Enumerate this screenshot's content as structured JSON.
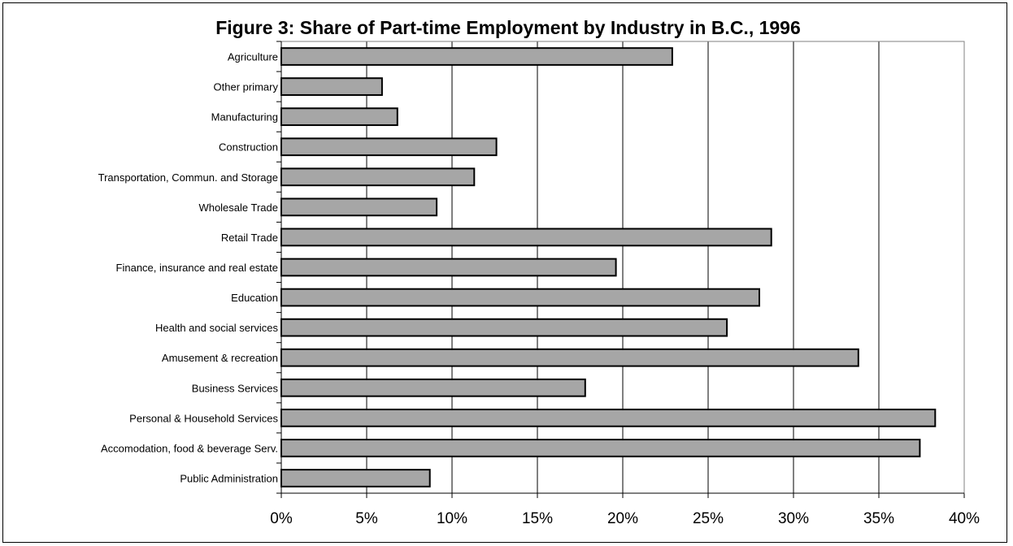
{
  "chart_data": {
    "type": "bar",
    "orientation": "horizontal",
    "title": "Figure 3: Share of Part-time Employment by Industry in B.C., 1996",
    "categories": [
      "Agriculture",
      "Other primary",
      "Manufacturing",
      "Construction",
      "Transportation, Commun. and Storage",
      "Wholesale Trade",
      "Retail Trade",
      "Finance, insurance and real estate",
      "Education",
      "Health and social services",
      "Amusement & recreation",
      "Business Services",
      "Personal & Household Services",
      "Accomodation, food & beverage Serv.",
      "Public Administration"
    ],
    "values": [
      22.9,
      5.9,
      6.8,
      12.6,
      11.3,
      9.1,
      28.7,
      19.6,
      28.0,
      26.1,
      33.8,
      17.8,
      38.3,
      37.4,
      8.7
    ],
    "xlim": [
      0,
      40
    ],
    "xticks": [
      "0%",
      "5%",
      "10%",
      "15%",
      "20%",
      "25%",
      "30%",
      "35%",
      "40%"
    ],
    "grid": "vertical",
    "legend": "none",
    "colors": {
      "bar_fill": "#a6a6a6",
      "bar_stroke": "#000000",
      "grid": "#000000"
    }
  }
}
